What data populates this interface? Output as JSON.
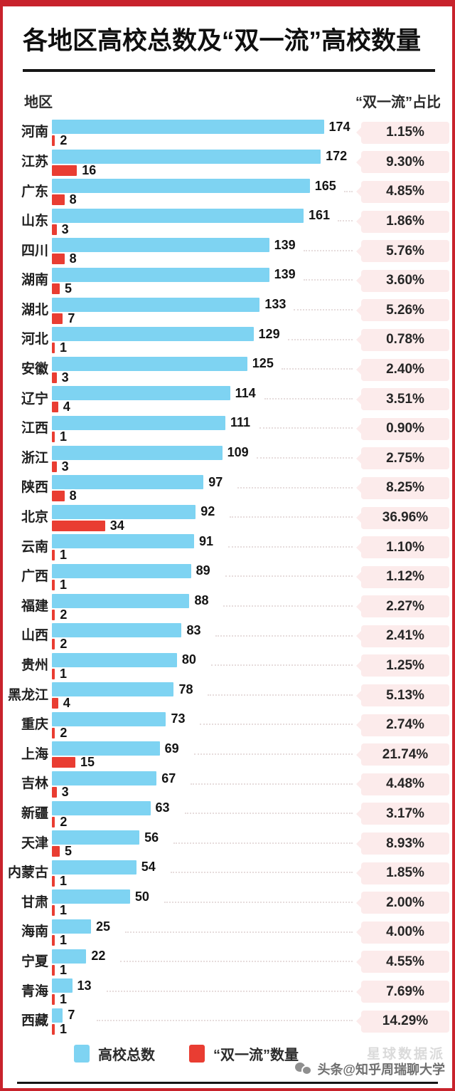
{
  "frame": {
    "border_color": "#c8232c"
  },
  "title": "各地区高校总数及“双一流”高校数量",
  "header": {
    "left_label": "地区",
    "right_label": "“双一流”占比"
  },
  "legend": {
    "total_label": "高校总数",
    "total_color": "#7ed3f2",
    "dfc_label": "“双一流”数量",
    "dfc_color": "#e93d32"
  },
  "watermark": {
    "ghost": "星球数据派",
    "main": "头条@知乎周瑞聊大学"
  },
  "badge_bg": "#fcebeb",
  "chart_data": {
    "type": "bar",
    "orientation": "horizontal",
    "title": "各地区高校总数及“双一流”高校数量",
    "xlabel": "",
    "ylabel": "地区",
    "max_value": 174,
    "legend_position": "bottom",
    "series_names": [
      "高校总数",
      "“双一流”数量"
    ],
    "ratio_label": "“双一流”占比",
    "rows": [
      {
        "region": "河南",
        "total": 174,
        "dfc": 2,
        "ratio": "1.15%"
      },
      {
        "region": "江苏",
        "total": 172,
        "dfc": 16,
        "ratio": "9.30%"
      },
      {
        "region": "广东",
        "total": 165,
        "dfc": 8,
        "ratio": "4.85%"
      },
      {
        "region": "山东",
        "total": 161,
        "dfc": 3,
        "ratio": "1.86%"
      },
      {
        "region": "四川",
        "total": 139,
        "dfc": 8,
        "ratio": "5.76%"
      },
      {
        "region": "湖南",
        "total": 139,
        "dfc": 5,
        "ratio": "3.60%"
      },
      {
        "region": "湖北",
        "total": 133,
        "dfc": 7,
        "ratio": "5.26%"
      },
      {
        "region": "河北",
        "total": 129,
        "dfc": 1,
        "ratio": "0.78%"
      },
      {
        "region": "安徽",
        "total": 125,
        "dfc": 3,
        "ratio": "2.40%"
      },
      {
        "region": "辽宁",
        "total": 114,
        "dfc": 4,
        "ratio": "3.51%"
      },
      {
        "region": "江西",
        "total": 111,
        "dfc": 1,
        "ratio": "0.90%"
      },
      {
        "region": "浙江",
        "total": 109,
        "dfc": 3,
        "ratio": "2.75%"
      },
      {
        "region": "陕西",
        "total": 97,
        "dfc": 8,
        "ratio": "8.25%"
      },
      {
        "region": "北京",
        "total": 92,
        "dfc": 34,
        "ratio": "36.96%"
      },
      {
        "region": "云南",
        "total": 91,
        "dfc": 1,
        "ratio": "1.10%"
      },
      {
        "region": "广西",
        "total": 89,
        "dfc": 1,
        "ratio": "1.12%"
      },
      {
        "region": "福建",
        "total": 88,
        "dfc": 2,
        "ratio": "2.27%"
      },
      {
        "region": "山西",
        "total": 83,
        "dfc": 2,
        "ratio": "2.41%"
      },
      {
        "region": "贵州",
        "total": 80,
        "dfc": 1,
        "ratio": "1.25%"
      },
      {
        "region": "黑龙江",
        "total": 78,
        "dfc": 4,
        "ratio": "5.13%"
      },
      {
        "region": "重庆",
        "total": 73,
        "dfc": 2,
        "ratio": "2.74%"
      },
      {
        "region": "上海",
        "total": 69,
        "dfc": 15,
        "ratio": "21.74%"
      },
      {
        "region": "吉林",
        "total": 67,
        "dfc": 3,
        "ratio": "4.48%"
      },
      {
        "region": "新疆",
        "total": 63,
        "dfc": 2,
        "ratio": "3.17%"
      },
      {
        "region": "天津",
        "total": 56,
        "dfc": 5,
        "ratio": "8.93%"
      },
      {
        "region": "内蒙古",
        "total": 54,
        "dfc": 1,
        "ratio": "1.85%"
      },
      {
        "region": "甘肃",
        "total": 50,
        "dfc": 1,
        "ratio": "2.00%"
      },
      {
        "region": "海南",
        "total": 25,
        "dfc": 1,
        "ratio": "4.00%"
      },
      {
        "region": "宁夏",
        "total": 22,
        "dfc": 1,
        "ratio": "4.55%"
      },
      {
        "region": "青海",
        "total": 13,
        "dfc": 1,
        "ratio": "7.69%"
      },
      {
        "region": "西藏",
        "total": 7,
        "dfc": 1,
        "ratio": "14.29%"
      }
    ]
  }
}
